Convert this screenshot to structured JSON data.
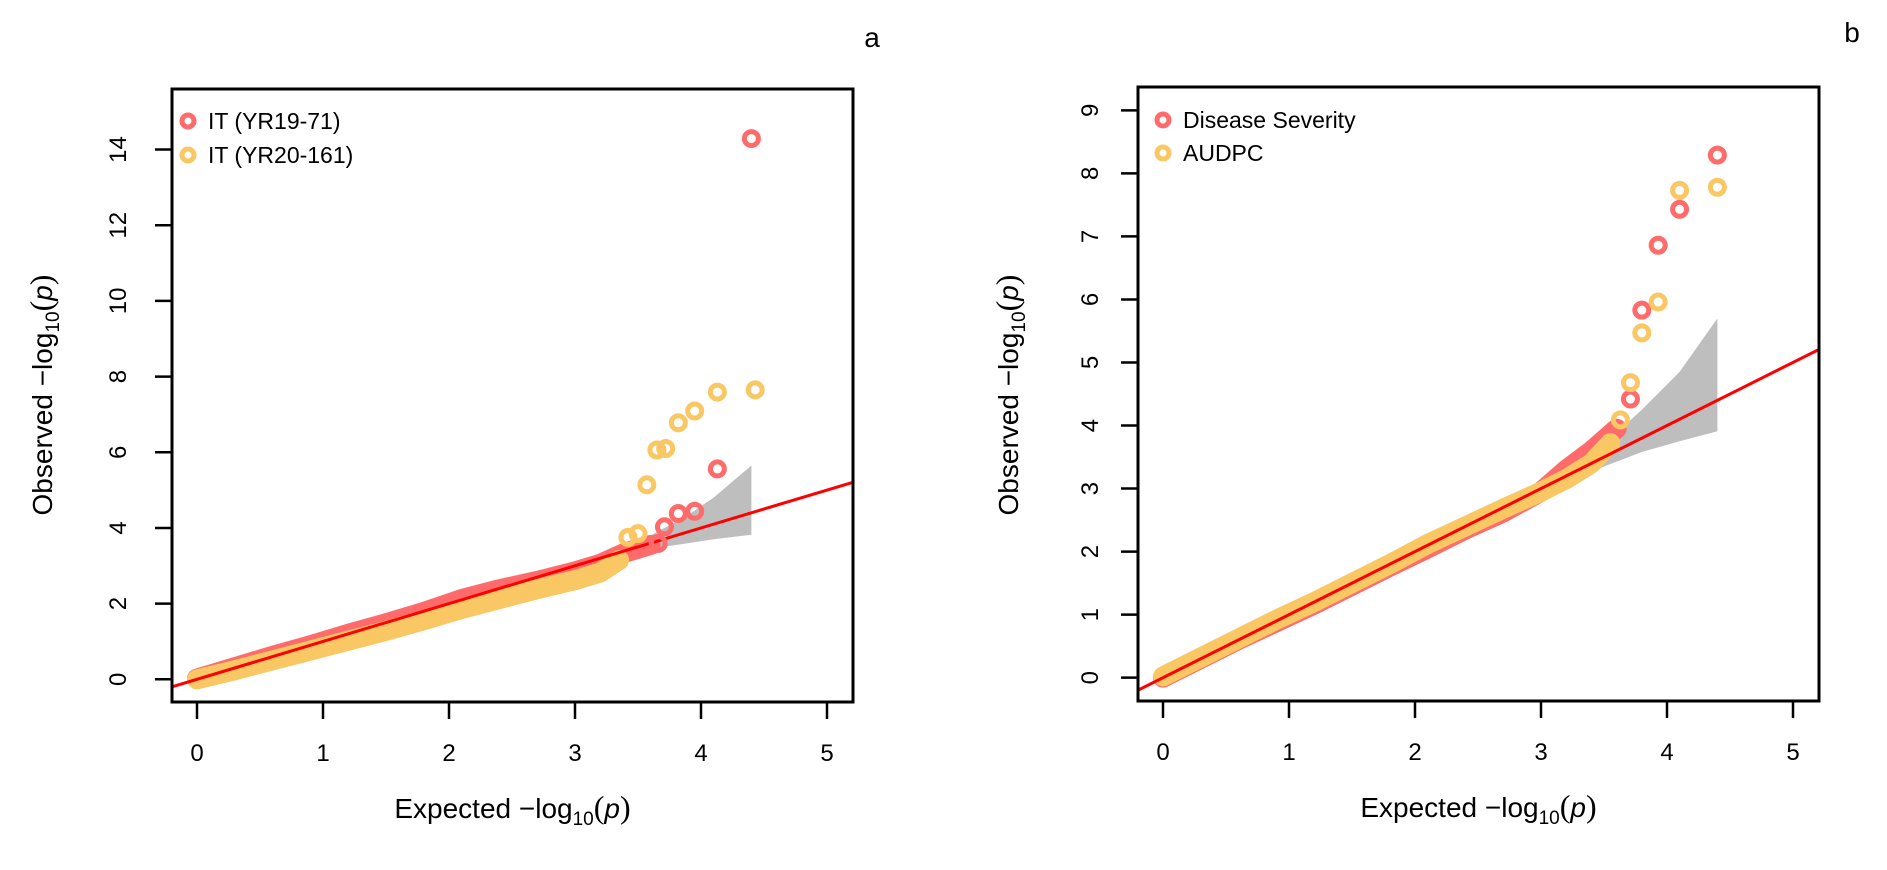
{
  "chart_data": [
    {
      "type": "scatter",
      "subtype": "qq-plot",
      "panel_label": "a",
      "xlabel_main": "Expected",
      "ylabel_main": "Observed",
      "axis_expr": {
        "minus": "−",
        "log": "log",
        "sub": "10",
        "open": "(",
        "var": "p",
        "close": ")"
      },
      "xlim": [
        -0.2,
        5.2
      ],
      "ylim": [
        -0.6,
        15.6
      ],
      "xticks": [
        0,
        1,
        2,
        3,
        4,
        5
      ],
      "yticks": [
        0,
        2,
        4,
        6,
        8,
        10,
        12,
        14
      ],
      "grid": false,
      "legend_position": "top-left",
      "reference_line": {
        "color": "#ff0000",
        "slope": 1,
        "intercept": 0
      },
      "confidence_band": {
        "color": "#bebebe",
        "x": [
          3.3,
          3.6,
          3.9,
          4.1,
          4.4
        ],
        "upper": [
          3.4,
          3.8,
          4.35,
          4.8,
          5.65
        ],
        "lower": [
          3.2,
          3.45,
          3.6,
          3.7,
          3.82
        ]
      },
      "series": [
        {
          "name": "IT (YR19-71)",
          "color": "#ff6b6b",
          "body": [
            [
              0,
              0.02
            ],
            [
              0.3,
              0.32
            ],
            [
              0.6,
              0.62
            ],
            [
              0.9,
              0.9
            ],
            [
              1.2,
              1.2
            ],
            [
              1.5,
              1.48
            ],
            [
              1.8,
              1.78
            ],
            [
              2.1,
              2.12
            ],
            [
              2.4,
              2.38
            ],
            [
              2.7,
              2.6
            ],
            [
              3.0,
              2.85
            ],
            [
              3.2,
              3.05
            ],
            [
              3.4,
              3.35
            ],
            [
              3.6,
              3.55
            ]
          ],
          "outliers": [
            [
              3.66,
              3.59
            ],
            [
              3.71,
              4.03
            ],
            [
              3.82,
              4.38
            ],
            [
              3.95,
              4.44
            ],
            [
              4.13,
              5.56
            ],
            [
              4.4,
              14.29
            ]
          ]
        },
        {
          "name": "IT (YR20-161)",
          "color": "#f9c764",
          "body": [
            [
              0,
              0.0
            ],
            [
              0.3,
              0.24
            ],
            [
              0.6,
              0.5
            ],
            [
              0.9,
              0.76
            ],
            [
              1.2,
              1.02
            ],
            [
              1.5,
              1.28
            ],
            [
              1.8,
              1.56
            ],
            [
              2.1,
              1.86
            ],
            [
              2.4,
              2.12
            ],
            [
              2.7,
              2.38
            ],
            [
              3.0,
              2.62
            ],
            [
              3.2,
              2.82
            ],
            [
              3.35,
              3.15
            ]
          ],
          "outliers": [
            [
              3.42,
              3.75
            ],
            [
              3.5,
              3.85
            ],
            [
              3.57,
              5.14
            ],
            [
              3.65,
              6.06
            ],
            [
              3.72,
              6.1
            ],
            [
              3.82,
              6.78
            ],
            [
              3.95,
              7.09
            ],
            [
              4.13,
              7.59
            ],
            [
              4.43,
              7.65
            ]
          ]
        }
      ]
    },
    {
      "type": "scatter",
      "subtype": "qq-plot",
      "panel_label": "b",
      "xlabel_main": "Expected",
      "ylabel_main": "Observed",
      "axis_expr": {
        "minus": "−",
        "log": "log",
        "sub": "10",
        "open": "(",
        "var": "p",
        "close": ")"
      },
      "xlim": [
        -0.2,
        5.2
      ],
      "ylim": [
        -0.37,
        9.37
      ],
      "xticks": [
        0,
        1,
        2,
        3,
        4,
        5
      ],
      "yticks": [
        0,
        1,
        2,
        3,
        4,
        5,
        6,
        7,
        8,
        9
      ],
      "grid": false,
      "legend_position": "top-left",
      "reference_line": {
        "color": "#ff0000",
        "slope": 1,
        "intercept": 0
      },
      "confidence_band": {
        "color": "#bebebe",
        "x": [
          3.2,
          3.5,
          3.8,
          4.1,
          4.4
        ],
        "upper": [
          3.3,
          3.7,
          4.25,
          4.85,
          5.7
        ],
        "lower": [
          3.1,
          3.35,
          3.58,
          3.75,
          3.91
        ]
      },
      "series": [
        {
          "name": "Disease Severity",
          "color": "#ff6b6b",
          "body": [
            [
              0,
              0.0
            ],
            [
              0.3,
              0.3
            ],
            [
              0.6,
              0.6
            ],
            [
              0.9,
              0.88
            ],
            [
              1.2,
              1.16
            ],
            [
              1.5,
              1.46
            ],
            [
              1.8,
              1.76
            ],
            [
              2.1,
              2.05
            ],
            [
              2.4,
              2.35
            ],
            [
              2.7,
              2.62
            ],
            [
              3.0,
              2.95
            ],
            [
              3.2,
              3.3
            ],
            [
              3.4,
              3.6
            ],
            [
              3.6,
              3.95
            ]
          ],
          "outliers": [
            [
              3.71,
              4.42
            ],
            [
              3.8,
              5.83
            ],
            [
              3.93,
              6.86
            ],
            [
              4.1,
              7.43
            ],
            [
              4.4,
              8.29
            ]
          ]
        },
        {
          "name": "AUDPC",
          "color": "#f9c764",
          "body": [
            [
              0,
              0.02
            ],
            [
              0.3,
              0.32
            ],
            [
              0.6,
              0.62
            ],
            [
              0.9,
              0.92
            ],
            [
              1.2,
              1.2
            ],
            [
              1.5,
              1.5
            ],
            [
              1.8,
              1.8
            ],
            [
              2.1,
              2.12
            ],
            [
              2.4,
              2.4
            ],
            [
              2.7,
              2.68
            ],
            [
              3.0,
              2.95
            ],
            [
              3.2,
              3.15
            ],
            [
              3.4,
              3.4
            ],
            [
              3.55,
              3.72
            ]
          ],
          "outliers": [
            [
              3.63,
              4.09
            ],
            [
              3.71,
              4.68
            ],
            [
              3.8,
              5.47
            ],
            [
              3.93,
              5.96
            ],
            [
              4.1,
              7.73
            ],
            [
              4.4,
              7.78
            ]
          ]
        }
      ]
    }
  ]
}
